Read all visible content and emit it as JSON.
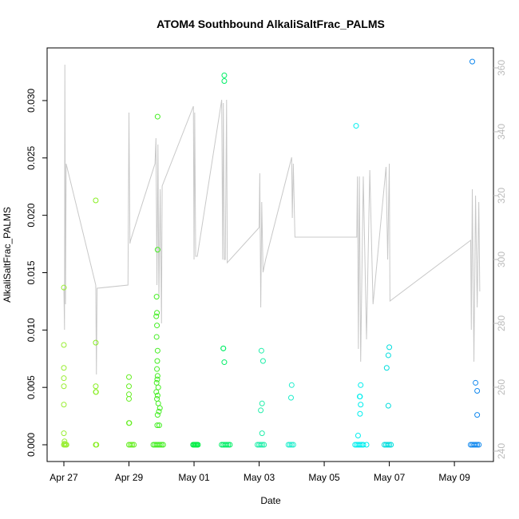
{
  "chart_data": {
    "type": "scatter",
    "title": "ATOM4 Southbound AlkaliSaltFrac_PALMS",
    "x_label": "Date",
    "y_label": "AlkaliSaltFrac_PALMS",
    "xlim": [
      -0.515,
      13.2
    ],
    "ylim": [
      -0.00146,
      0.03459
    ],
    "y2lim": [
      236.75,
      366.25
    ],
    "xticks": [
      {
        "value": 0,
        "label": "Apr 27"
      },
      {
        "value": 2,
        "label": "Apr 29"
      },
      {
        "value": 4,
        "label": "May 01"
      },
      {
        "value": 6,
        "label": "May 03"
      },
      {
        "value": 8,
        "label": "May 05"
      },
      {
        "value": 10,
        "label": "May 07"
      },
      {
        "value": 12,
        "label": "May 09"
      }
    ],
    "yticks": [
      {
        "value": 0,
        "label": "0.000"
      },
      {
        "value": 0.005,
        "label": "0.005"
      },
      {
        "value": 0.01,
        "label": "0.010"
      },
      {
        "value": 0.015,
        "label": "0.015"
      },
      {
        "value": 0.02,
        "label": "0.020"
      },
      {
        "value": 0.025,
        "label": "0.025"
      },
      {
        "value": 0.03,
        "label": "0.030"
      }
    ],
    "y2ticks": [
      240,
      260,
      280,
      300,
      320,
      340,
      360
    ],
    "series": [
      {
        "color": "#99ee33",
        "x": [
          0,
          0,
          0,
          0,
          0,
          0,
          0,
          0.02,
          0.02,
          0,
          0.03,
          0.06,
          0.08
        ],
        "values": [
          0.0137,
          0.0087,
          0.0067,
          0.0058,
          0.0051,
          0.0035,
          0.001,
          0.0003,
          0.0001,
          0,
          0,
          0,
          0
        ]
      },
      {
        "color": "#88ee22",
        "x": [
          0.98,
          0.98,
          0.98,
          0.98,
          0.99,
          0.98,
          1.0
        ],
        "values": [
          0.0213,
          0.0089,
          0.0051,
          0.0046,
          0.0046,
          0,
          0
        ]
      },
      {
        "color": "#66ee22",
        "x": [
          2.0,
          2.0,
          2.0,
          2.0,
          2.0,
          2.01,
          2.0,
          2.05,
          2.1,
          2.15
        ],
        "values": [
          0.0059,
          0.0051,
          0.0044,
          0.004,
          0.0019,
          0.0019,
          0,
          0,
          0,
          0
        ]
      },
      {
        "color": "#44ee22",
        "x": [
          2.88,
          2.88,
          2.85,
          2.86,
          2.84,
          2.86,
          2.85,
          2.88,
          2.87,
          2.86,
          2.88,
          2.87,
          2.85,
          2.9,
          2.84,
          2.88,
          2.86,
          2.9,
          2.95,
          2.92,
          2.88,
          2.87,
          2.93,
          2.75,
          2.8,
          2.85,
          2.9,
          2.95,
          3.0,
          3.05
        ],
        "values": [
          0.0286,
          0.017,
          0.0129,
          0.0115,
          0.0112,
          0.0104,
          0.0094,
          0.0082,
          0.0073,
          0.0066,
          0.006,
          0.0057,
          0.0054,
          0.005,
          0.0046,
          0.0043,
          0.004,
          0.0036,
          0.0032,
          0.0029,
          0.0026,
          0.0017,
          0.0017,
          0,
          0,
          0,
          0,
          0,
          0,
          0
        ]
      },
      {
        "color": "#00ee44",
        "x": [
          3.97,
          4.0,
          4.03,
          4.06,
          4.09,
          4.12
        ],
        "values": [
          0,
          0,
          0,
          0,
          0,
          0
        ]
      },
      {
        "color": "#00ee66",
        "x": [
          4.93,
          4.93,
          4.9,
          4.9,
          4.93,
          4.85,
          4.9,
          4.95,
          5.0,
          5.05,
          5.1
        ],
        "values": [
          0.0322,
          0.0317,
          0.0084,
          0.0084,
          0.0072,
          0,
          0,
          0,
          0,
          0,
          0
        ]
      },
      {
        "color": "#22eeaa",
        "x": [
          6.07,
          6.12,
          6.09,
          6.05,
          6.09,
          5.95,
          6.0,
          6.05,
          6.1,
          6.15
        ],
        "values": [
          0.0082,
          0.0073,
          0.0036,
          0.003,
          0.001,
          0,
          0,
          0,
          0,
          0
        ]
      },
      {
        "color": "#22eecc",
        "x": [
          7.0,
          6.98,
          6.9,
          6.95,
          7.0,
          7.05
        ],
        "values": [
          0.0052,
          0.0041,
          0,
          0,
          0,
          0
        ]
      },
      {
        "color": "#00eeee",
        "x": [
          8.98,
          9.12,
          9.1,
          9.09,
          9.12,
          9.1,
          9.04,
          8.95,
          9.0,
          9.05,
          9.1,
          9.15,
          9.2,
          9.3
        ],
        "values": [
          0.0278,
          0.0052,
          0.0042,
          0.0042,
          0.0035,
          0.0027,
          0.0008,
          0,
          0,
          0,
          0,
          0,
          0,
          0
        ]
      },
      {
        "color": "#00dddd",
        "x": [
          10.0,
          9.97,
          9.92,
          9.97,
          9.85,
          9.9,
          9.95,
          10.0,
          10.05
        ],
        "values": [
          0.0085,
          0.0078,
          0.0067,
          0.0034,
          0,
          0,
          0,
          0,
          0
        ]
      },
      {
        "color": "#1188ee",
        "x": [
          12.55,
          12.65,
          12.7,
          12.7,
          12.5,
          12.55,
          12.6,
          12.65,
          12.7,
          12.75
        ],
        "values": [
          0.0334,
          0.0054,
          0.0047,
          0.0026,
          0,
          0,
          0,
          0,
          0,
          0
        ]
      },
      {
        "color": "#c8c8c8",
        "axis": "y2",
        "type": "line",
        "x": [
          0,
          0.02,
          0.03,
          0.05,
          0.07,
          0.98,
          1.0,
          1.02,
          1.97,
          2.0,
          2.03,
          2.05,
          2.8,
          2.83,
          2.86,
          2.89,
          2.92,
          2.96,
          3.0,
          3.02,
          3.98,
          4.0,
          4.02,
          4.05,
          4.1,
          4.85,
          4.88,
          4.9,
          4.93,
          4.96,
          5.0,
          5.02,
          6.0,
          6.02,
          6.05,
          6.08,
          6.12,
          6.2,
          7.0,
          7.02,
          7.05,
          7.1,
          9.0,
          9.02,
          9.05,
          9.08,
          9.12,
          9.2,
          9.3,
          9.4,
          9.5,
          9.9,
          9.95,
          10.0,
          10.02,
          12.5,
          12.52,
          12.55,
          12.6,
          12.65,
          12.7,
          12.75,
          12.78
        ],
        "values": [
          291,
          278,
          361,
          286,
          330,
          292,
          264,
          291,
          292,
          346,
          305,
          306,
          330,
          338,
          292,
          336,
          288,
          322,
          280,
          323,
          348,
          300,
          346,
          301,
          301,
          350,
          300,
          349,
          300,
          300,
          350,
          299,
          310,
          327,
          285,
          318,
          296,
          300,
          332,
          313,
          330,
          307,
          307,
          326,
          272,
          326,
          268,
          326,
          275,
          328,
          286,
          329,
          300,
          330,
          287,
          306,
          278,
          322,
          268,
          320,
          285,
          318,
          290
        ]
      }
    ]
  }
}
